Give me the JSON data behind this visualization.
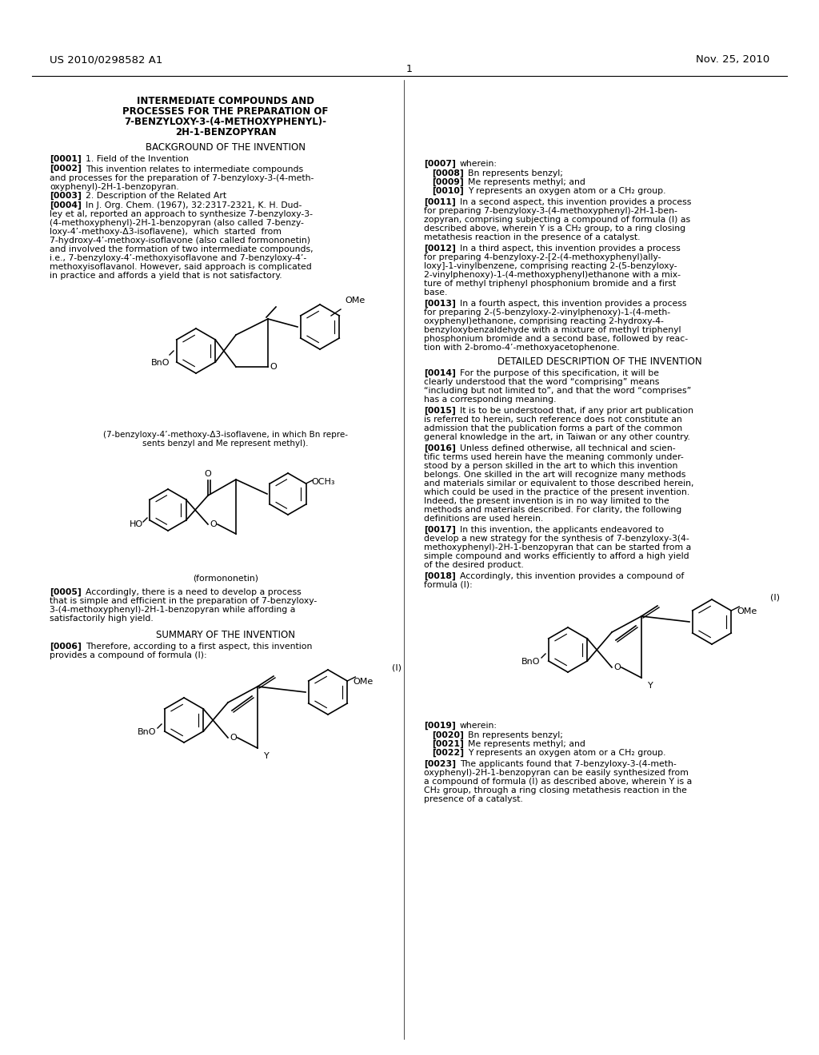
{
  "background_color": "#ffffff",
  "page_number": "1",
  "patent_number": "US 2010/0298582 A1",
  "date": "Nov. 25, 2010",
  "title_bold": "INTERMEDIATE COMPOUNDS AND\nPROCESSES FOR THE PREPARATION OF\n7-BENZYLOXY-3-(4-METHOXYPHENYL)-\n2H-1-BENZOPYRAN",
  "section1": "BACKGROUND OF THE INVENTION",
  "paragraphs_left": [
    {
      "tag": "[0001]",
      "text": "1. Field of the Invention"
    },
    {
      "tag": "[0002]",
      "text": "This invention relates to intermediate compounds and processes for the preparation of 7-benzyloxy-3-(4-meth-oxyphenyl)-2H-1-benzopyran."
    },
    {
      "tag": "[0003]",
      "text": "2. Description of the Related Art"
    },
    {
      "tag": "[0004]",
      "text": "In J. Org. Chem. (1967), 32:2317-2321, K. H. Dudley et al, reported an approach to synthesize 7-benzyloxy-3-(4-methoxyphenyl)-2H-1-benzopyran (also called 7-benzy-loxy-4’-methoxy-Δ3-isoflavene),  which  started  from 7-hydroxy-4’-methoxy-isoflavone (also called formononetin) and involved the formation of two intermediate compounds, i.e., 7-benzyloxy-4’-methoxyisoflavone and 7-benzyloxy-4’-methoxyisoflavanol. However, said approach is complicated in practice and affords a yield that is not satisfactory."
    }
  ],
  "caption1": "(7-benzyloxy-4’-methoxy-Δ3-isoflavene, in which Bn repre-\nsents benzyl and Me represent methyl).",
  "caption2": "(formononetin)",
  "section2": "SUMMARY OF THE INVENTION",
  "para_0006": "[0006]   Therefore, according to a first aspect, this invention provides a compound of formula (I):",
  "label_I_left": "(I)",
  "label_BnO_left": "BnO",
  "label_OMe_left": "OMe",
  "label_Y_left": "Y",
  "paragraphs_right_top": [
    {
      "tag": "[0007]",
      "text": "wherein:"
    },
    {
      "tag": "[0008]",
      "text": "Bn represents benzyl;"
    },
    {
      "tag": "[0009]",
      "text": "Me represents methyl; and"
    },
    {
      "tag": "[0010]",
      "text": "Y represents an oxygen atom or a CH₂ group."
    }
  ],
  "para_0011": "[0011]   In a second aspect, this invention provides a process for preparing 7-benzyloxy-3-(4-methoxyphenyl)-2H-1-ben-zopyran, comprising subjecting a compound of formula (I) as described above, wherein Y is a CH₂ group, to a ring closing metathesis reaction in the presence of a catalyst.",
  "para_0012": "[0012]   In a third aspect, this invention provides a process for preparing 4-benzyloxy-2-[2-(4-methoxyphenyl)ally-loxy]-1-vinylbenzene, comprising reacting 2-(5-benzyloxy-2-vinylphenoxy)-1-(4-methoxyphenyl)ethanone with a mixture of methyl triphenyl phosphonium bromide and a first base.",
  "para_0013": "[0013]   In a fourth aspect, this invention provides a process for preparing 2-(5-benzyloxy-2-vinylphenoxy)-1-(4-meth-oxyphenyl)ethanone, comprising reacting 2-hydroxy-4-benzyloxybenzaldehyde with a mixture of methyl triphenyl phosphonium bromide and a second base, followed by reac-tion with 2-bromo-4’-methoxyacetophenone.",
  "section3": "DETAILED DESCRIPTION OF THE INVENTION",
  "para_0014": "[0014]   For the purpose of this specification, it will be clearly understood that the word “comprising” means “including but not limited to”, and that the word “comprises” has a corresponding meaning.",
  "para_0015": "[0015]   It is to be understood that, if any prior art publication is referred to herein, such reference does not constitute an admission that the publication forms a part of the common general knowledge in the art, in Taiwan or any other country.",
  "para_0016": "[0016]   Unless defined otherwise, all technical and scien-tific terms used herein have the meaning commonly under-stood by a person skilled in the art to which this invention belongs. One skilled in the art will recognize many methods and materials similar or equivalent to those described herein, which could be used in the practice of the present invention. Indeed, the present invention is in no way limited to the methods and materials described. For clarity, the following definitions are used herein.",
  "para_0017": "[0017]   In this invention, the applicants endeavored to develop a new strategy for the synthesis of 7-benzyloxy-3(4-methoxyphenyl)-2H-1-benzopyran that can be started from a simple compound and works efficiently to afford a high yield of the desired product.",
  "para_0018": "[0018]   Accordingly, this invention provides a compound of formula (I):",
  "label_I_right": "(I)",
  "label_BnO_right": "BnO",
  "label_OMe_right": "OMe",
  "label_Y_right": "Y",
  "paragraphs_right_bottom": [
    {
      "tag": "[0019]",
      "text": "wherein:"
    },
    {
      "tag": "[0020]",
      "text": "Bn represents benzyl;"
    },
    {
      "tag": "[0021]",
      "text": "Me represents methyl; and"
    },
    {
      "tag": "[0022]",
      "text": "Y represents an oxygen atom or a CH₂ group."
    }
  ],
  "para_0023": "[0023]   The applicants found that 7-benzyloxy-3-(4-meth-oxyphenyl)-2H-1-benzopyran can be easily synthesized from a compound of formula (I) as described above, wherein Y is a CH₂ group, through a ring closing metathesis reaction in the presence of a catalyst."
}
